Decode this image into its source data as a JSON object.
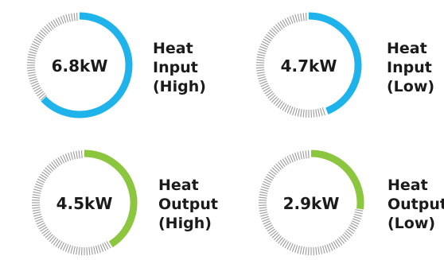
{
  "gauges": [
    {
      "value_text": "6.8kW",
      "label_lines": [
        "Heat",
        "Input",
        "(High)"
      ],
      "fill_fraction": 0.63,
      "color": "#1fb3ec"
    },
    {
      "value_text": "4.7kW",
      "label_lines": [
        "Heat",
        "Input",
        "(Low)"
      ],
      "fill_fraction": 0.44,
      "color": "#1fb3ec"
    },
    {
      "value_text": "4.5kW",
      "label_lines": [
        "Heat",
        "Output",
        "(High)"
      ],
      "fill_fraction": 0.41,
      "color": "#8cc63f"
    },
    {
      "value_text": "2.9kW",
      "label_lines": [
        "Heat",
        "Output",
        "(Low)"
      ],
      "fill_fraction": 0.27,
      "color": "#8cc63f"
    }
  ],
  "tick_color": "#9a9a9a"
}
